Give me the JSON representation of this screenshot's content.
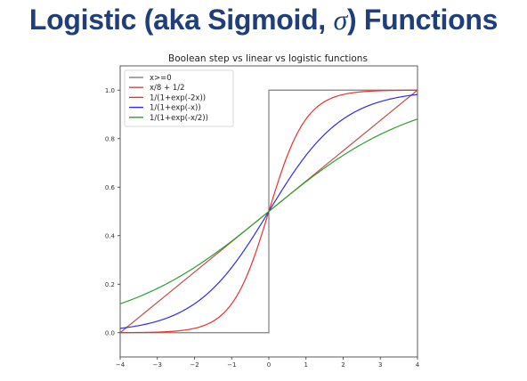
{
  "slide": {
    "title_prefix": "Logistic (aka Sigmoid, ",
    "title_sigma": "σ",
    "title_suffix": ") Functions"
  },
  "chart_data": {
    "type": "line",
    "title": "Boolean step vs linear vs logistic functions",
    "xlabel": "",
    "ylabel": "",
    "xlim": [
      -4,
      4
    ],
    "ylim": [
      -0.1,
      1.1
    ],
    "xticks": [
      "−4",
      "−3",
      "−2",
      "−1",
      "0",
      "1",
      "2",
      "3",
      "4"
    ],
    "yticks": [
      "0.0",
      "0.2",
      "0.4",
      "0.6",
      "0.8",
      "1.0"
    ],
    "grid": false,
    "legend_position": "top-left",
    "series": [
      {
        "name": "x>=0",
        "formula": "step",
        "color": "#7f7f7f",
        "x": [
          -4,
          0,
          0,
          4
        ],
        "y": [
          0,
          0,
          1,
          1
        ]
      },
      {
        "name": "x/8 + 1/2",
        "formula": "linear",
        "color": "#c0504d",
        "x": [
          -4,
          4
        ],
        "y": [
          0,
          1
        ]
      },
      {
        "name": "1/(1+exp(-2x))",
        "formula": "logistic",
        "k": 2,
        "color": "#e8302c"
      },
      {
        "name": "1/(1+exp(-x))",
        "formula": "logistic",
        "k": 1,
        "color": "#2e2ee6"
      },
      {
        "name": "1/(1+exp(-x/2))",
        "formula": "logistic",
        "k": 0.5,
        "color": "#2ca02c"
      }
    ]
  }
}
